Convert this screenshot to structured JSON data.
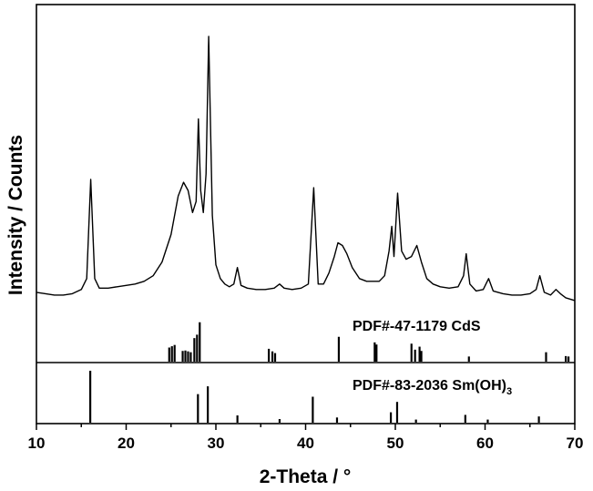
{
  "chart_data": {
    "type": "line",
    "xlabel": "2-Theta / °",
    "ylabel": "Intensity / Counts",
    "xlim": [
      10,
      70
    ],
    "x_ticks": [
      10,
      20,
      30,
      40,
      50,
      60,
      70
    ],
    "y_ticks_shown": false,
    "grid": false,
    "series": [
      {
        "points": [
          [
            10,
            0.07
          ],
          [
            11,
            0.065
          ],
          [
            12,
            0.06
          ],
          [
            13,
            0.06
          ],
          [
            14,
            0.065
          ],
          [
            15,
            0.08
          ],
          [
            15.6,
            0.12
          ],
          [
            16.05,
            0.48
          ],
          [
            16.5,
            0.12
          ],
          [
            17,
            0.085
          ],
          [
            18,
            0.085
          ],
          [
            19,
            0.09
          ],
          [
            20,
            0.095
          ],
          [
            21,
            0.1
          ],
          [
            22,
            0.11
          ],
          [
            23,
            0.13
          ],
          [
            24,
            0.18
          ],
          [
            25,
            0.28
          ],
          [
            25.8,
            0.42
          ],
          [
            26.4,
            0.47
          ],
          [
            26.9,
            0.44
          ],
          [
            27.4,
            0.36
          ],
          [
            27.8,
            0.4
          ],
          [
            28.05,
            0.7
          ],
          [
            28.3,
            0.44
          ],
          [
            28.6,
            0.36
          ],
          [
            28.9,
            0.5
          ],
          [
            29.2,
            1.0
          ],
          [
            29.6,
            0.35
          ],
          [
            30,
            0.17
          ],
          [
            30.5,
            0.12
          ],
          [
            31,
            0.1
          ],
          [
            31.5,
            0.09
          ],
          [
            32.0,
            0.1
          ],
          [
            32.4,
            0.16
          ],
          [
            32.8,
            0.095
          ],
          [
            33.5,
            0.085
          ],
          [
            34.5,
            0.08
          ],
          [
            35.5,
            0.08
          ],
          [
            36.5,
            0.085
          ],
          [
            37.1,
            0.1
          ],
          [
            37.6,
            0.085
          ],
          [
            38.5,
            0.08
          ],
          [
            39.5,
            0.085
          ],
          [
            40.3,
            0.1
          ],
          [
            40.9,
            0.45
          ],
          [
            41.4,
            0.1
          ],
          [
            42,
            0.1
          ],
          [
            42.6,
            0.14
          ],
          [
            43.2,
            0.2
          ],
          [
            43.6,
            0.25
          ],
          [
            44.1,
            0.24
          ],
          [
            44.6,
            0.21
          ],
          [
            45.2,
            0.16
          ],
          [
            46,
            0.12
          ],
          [
            46.8,
            0.11
          ],
          [
            47.5,
            0.11
          ],
          [
            48.2,
            0.11
          ],
          [
            48.8,
            0.13
          ],
          [
            49.3,
            0.22
          ],
          [
            49.6,
            0.31
          ],
          [
            49.85,
            0.2
          ],
          [
            50.25,
            0.43
          ],
          [
            50.7,
            0.22
          ],
          [
            51.2,
            0.19
          ],
          [
            51.8,
            0.2
          ],
          [
            52.4,
            0.24
          ],
          [
            52.9,
            0.18
          ],
          [
            53.5,
            0.12
          ],
          [
            54.2,
            0.1
          ],
          [
            55,
            0.09
          ],
          [
            56,
            0.085
          ],
          [
            57,
            0.09
          ],
          [
            57.6,
            0.13
          ],
          [
            57.9,
            0.21
          ],
          [
            58.3,
            0.1
          ],
          [
            59,
            0.075
          ],
          [
            59.8,
            0.08
          ],
          [
            60.4,
            0.12
          ],
          [
            60.9,
            0.075
          ],
          [
            62,
            0.065
          ],
          [
            63,
            0.06
          ],
          [
            64,
            0.06
          ],
          [
            65,
            0.065
          ],
          [
            65.7,
            0.08
          ],
          [
            66.1,
            0.13
          ],
          [
            66.6,
            0.07
          ],
          [
            67.3,
            0.06
          ],
          [
            67.9,
            0.08
          ],
          [
            68.4,
            0.065
          ],
          [
            69,
            0.05
          ],
          [
            69.5,
            0.045
          ],
          [
            70,
            0.04
          ]
        ]
      }
    ],
    "references": [
      {
        "name": "PDF#-47-1179 CdS",
        "lines": [
          [
            24.8,
            0.33
          ],
          [
            25.1,
            0.36
          ],
          [
            25.4,
            0.39
          ],
          [
            26.3,
            0.25
          ],
          [
            26.6,
            0.26
          ],
          [
            26.9,
            0.24
          ],
          [
            27.2,
            0.22
          ],
          [
            27.6,
            0.55
          ],
          [
            27.9,
            0.63
          ],
          [
            28.2,
            0.92
          ],
          [
            35.9,
            0.3
          ],
          [
            36.3,
            0.24
          ],
          [
            36.6,
            0.2
          ],
          [
            43.7,
            0.58
          ],
          [
            47.7,
            0.45
          ],
          [
            47.9,
            0.4
          ],
          [
            51.8,
            0.42
          ],
          [
            52.2,
            0.28
          ],
          [
            52.7,
            0.35
          ],
          [
            52.9,
            0.25
          ],
          [
            58.2,
            0.12
          ],
          [
            66.8,
            0.22
          ],
          [
            69.0,
            0.13
          ],
          [
            69.3,
            0.12
          ]
        ]
      },
      {
        "name": "PDF#-83-2036 Sm(OH)",
        "name_subscript": "3",
        "lines": [
          [
            16.0,
            1.0
          ],
          [
            28.0,
            0.55
          ],
          [
            29.1,
            0.7
          ],
          [
            32.4,
            0.14
          ],
          [
            37.1,
            0.07
          ],
          [
            40.8,
            0.5
          ],
          [
            43.5,
            0.1
          ],
          [
            49.5,
            0.2
          ],
          [
            50.2,
            0.4
          ],
          [
            52.3,
            0.06
          ],
          [
            57.8,
            0.15
          ],
          [
            60.3,
            0.06
          ],
          [
            66.0,
            0.12
          ]
        ]
      }
    ]
  }
}
